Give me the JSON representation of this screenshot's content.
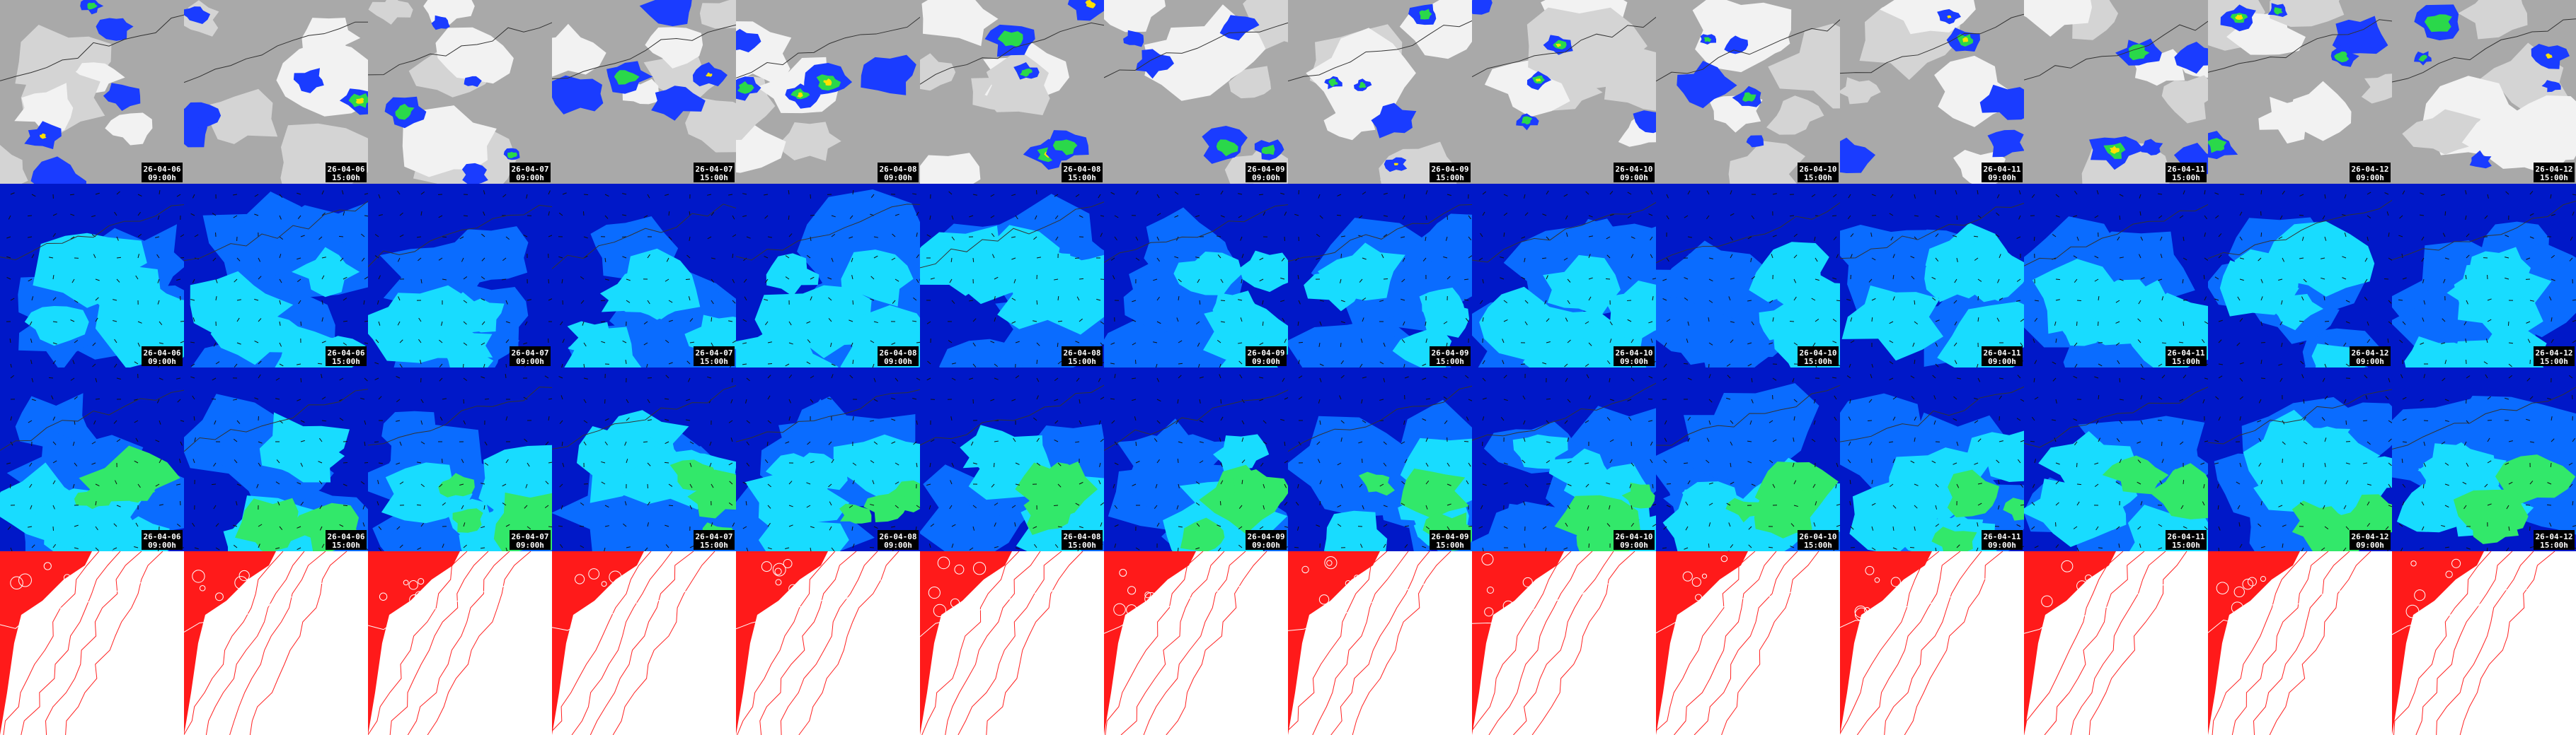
{
  "columns": [
    {
      "date": "26-04-06",
      "time": "09:00h"
    },
    {
      "date": "26-04-06",
      "time": "15:00h"
    },
    {
      "date": "26-04-07",
      "time": "09:00h"
    },
    {
      "date": "26-04-07",
      "time": "15:00h"
    },
    {
      "date": "26-04-08",
      "time": "09:00h"
    },
    {
      "date": "26-04-08",
      "time": "15:00h"
    },
    {
      "date": "26-04-09",
      "time": "09:00h"
    },
    {
      "date": "26-04-09",
      "time": "15:00h"
    },
    {
      "date": "26-04-10",
      "time": "09:00h"
    },
    {
      "date": "26-04-10",
      "time": "15:00h"
    },
    {
      "date": "26-04-11",
      "time": "09:00h"
    },
    {
      "date": "26-04-11",
      "time": "15:00h"
    },
    {
      "date": "26-04-12",
      "time": "09:00h"
    },
    {
      "date": "26-04-12",
      "time": "15:00h"
    }
  ]
}
